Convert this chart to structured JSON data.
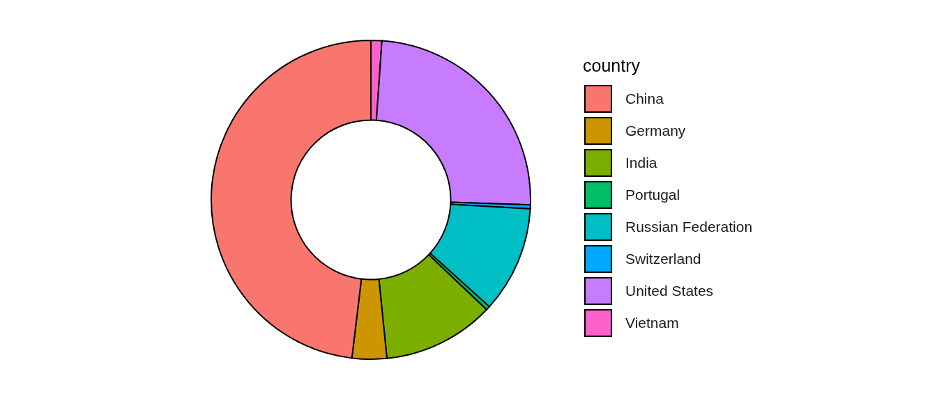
{
  "chart_data": {
    "type": "donut",
    "legend_title": "country",
    "legend": "right",
    "categories": [
      "China",
      "Germany",
      "India",
      "Portugal",
      "Russian Federation",
      "Switzerland",
      "United States",
      "Vietnam"
    ],
    "values": [
      48.1,
      3.5,
      11.3,
      0.4,
      10.8,
      0.4,
      24.4,
      1.1
    ],
    "colors": [
      "#f8766d",
      "#cd9600",
      "#7cae00",
      "#00be67",
      "#00bfc4",
      "#00a9ff",
      "#c77cff",
      "#ff61cc"
    ]
  }
}
